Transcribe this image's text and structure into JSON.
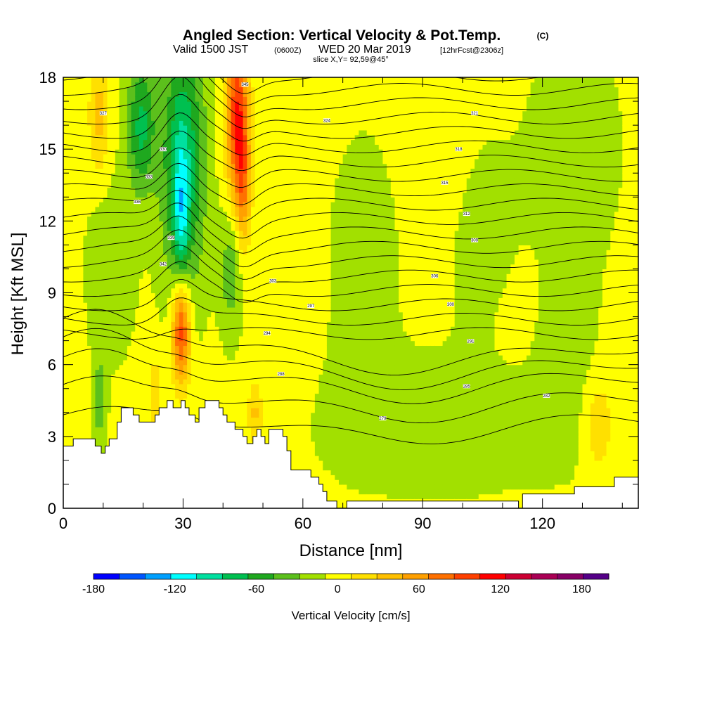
{
  "title": {
    "main": "Angled Section: Vertical Velocity & Pot.Temp.",
    "copyright": "(C)",
    "valid_prefix": "Valid 1500 JST",
    "valid_utc": "(0600Z)",
    "valid_date": "WED 20 Mar 2019",
    "forecast": "[12hrFcst@2306z]",
    "slice": "slice X,Y= 92,59@45°"
  },
  "chart_data": {
    "type": "heatmap",
    "xlabel": "Distance [nm]",
    "ylabel": "Height [Kft MSL]",
    "xlim": [
      0,
      144
    ],
    "ylim": [
      0,
      18
    ],
    "x_ticks": [
      0,
      30,
      60,
      90,
      120
    ],
    "y_ticks": [
      0,
      3,
      6,
      9,
      12,
      15,
      18
    ],
    "x_tick_labels": [
      "0",
      "30",
      "60",
      "90",
      "120"
    ],
    "y_tick_labels": [
      "0",
      "3",
      "6",
      "9",
      "12",
      "15",
      "18"
    ],
    "colorbar": {
      "title": "Vertical Velocity [cm/s]",
      "min": -180,
      "max": 200,
      "step": 20,
      "tick_values": [
        -180,
        -120,
        -60,
        0,
        60,
        120,
        180
      ],
      "tick_labels": [
        "-180",
        "-120",
        "-60",
        "0",
        "60",
        "120",
        "180"
      ],
      "colors": [
        "#0000ff",
        "#0055ff",
        "#00a0ff",
        "#00ffff",
        "#00e0a0",
        "#00c050",
        "#1fa81f",
        "#5cc01c",
        "#a2e000",
        "#ffff00",
        "#ffe000",
        "#ffc000",
        "#ffa000",
        "#ff7000",
        "#ff4000",
        "#ff0000",
        "#cc0033",
        "#aa0055",
        "#880066",
        "#550088"
      ]
    },
    "background_level": 5,
    "features": [
      {
        "name": "updraft-low",
        "x": 29.5,
        "y": 7.5,
        "sx": 1.6,
        "sy": 1.6,
        "amp": 118
      },
      {
        "name": "updraft-upper",
        "x": 43.5,
        "y": 16.5,
        "sx": 2.0,
        "sy": 2.5,
        "amp": 110
      },
      {
        "name": "updraft-upper-b",
        "x": 45,
        "y": 13.5,
        "sx": 1.4,
        "sy": 2.0,
        "amp": 60
      },
      {
        "name": "downdraft-column",
        "x": 30,
        "y": 14.5,
        "sx": 3.8,
        "sy": 3.8,
        "amp": -85
      },
      {
        "name": "downdraft-core",
        "x": 29.5,
        "y": 12.0,
        "sx": 1.3,
        "sy": 2.2,
        "amp": -55
      },
      {
        "name": "downdraft-left",
        "x": 19.5,
        "y": 16.0,
        "sx": 2.5,
        "sy": 2.0,
        "amp": -70
      },
      {
        "name": "downdraft-mid",
        "x": 42,
        "y": 10.0,
        "sx": 2.0,
        "sy": 1.8,
        "amp": -40
      },
      {
        "name": "updraft-left-top",
        "x": 9,
        "y": 16.5,
        "sx": 1.8,
        "sy": 1.8,
        "amp": 42
      },
      {
        "name": "updraft-right-low",
        "x": 134,
        "y": 3.5,
        "sx": 2.5,
        "sy": 1.4,
        "amp": 35
      },
      {
        "name": "updraft-48-low",
        "x": 48,
        "y": 4.0,
        "sx": 1.3,
        "sy": 1.0,
        "amp": 40
      },
      {
        "name": "updraft-23-low",
        "x": 23,
        "y": 4.5,
        "sx": 1.1,
        "sy": 1.3,
        "amp": 38
      },
      {
        "name": "downdraft-right-top",
        "x": 128,
        "y": 15,
        "sx": 7,
        "sy": 3,
        "amp": -22
      },
      {
        "name": "downdraft-mid-right",
        "x": 105,
        "y": 11,
        "sx": 9,
        "sy": 3,
        "amp": -18
      },
      {
        "name": "downdraft-lower-mid",
        "x": 95,
        "y": 3.5,
        "sx": 22,
        "sy": 2,
        "amp": -17
      },
      {
        "name": "downdraft-right-center",
        "x": 125,
        "y": 7,
        "sx": 6,
        "sy": 3,
        "amp": -16
      },
      {
        "name": "updraft-mid-right",
        "x": 95,
        "y": 14,
        "sx": 5,
        "sy": 4,
        "amp": 12
      },
      {
        "name": "updraft-right",
        "x": 115,
        "y": 9,
        "sx": 8,
        "sy": 3,
        "amp": 10
      },
      {
        "name": "downdraft-left-mid",
        "x": 12,
        "y": 10,
        "sx": 4,
        "sy": 2.5,
        "amp": -22
      },
      {
        "name": "updraft-58",
        "x": 58,
        "y": 12,
        "sx": 3,
        "sy": 5,
        "amp": 12
      },
      {
        "name": "downdraft-75",
        "x": 75,
        "y": 10,
        "sx": 6,
        "sy": 4,
        "amp": -14
      },
      {
        "name": "downdraft-9",
        "x": 9,
        "y": 4.5,
        "sx": 1.2,
        "sy": 1.5,
        "amp": -35
      }
    ],
    "terrain": [
      [
        0,
        2.6
      ],
      [
        2.5,
        2.6
      ],
      [
        2.5,
        2.9
      ],
      [
        8,
        2.9
      ],
      [
        8,
        2.6
      ],
      [
        9.5,
        2.6
      ],
      [
        9.5,
        2.3
      ],
      [
        10.5,
        2.3
      ],
      [
        10.5,
        2.6
      ],
      [
        11.5,
        2.6
      ],
      [
        11.5,
        2.9
      ],
      [
        13.5,
        2.9
      ],
      [
        13.5,
        3.6
      ],
      [
        14.5,
        3.6
      ],
      [
        14.5,
        4.2
      ],
      [
        17.5,
        4.2
      ],
      [
        17.5,
        3.9
      ],
      [
        19,
        3.9
      ],
      [
        19,
        3.6
      ],
      [
        23,
        3.6
      ],
      [
        23,
        3.9
      ],
      [
        24,
        3.9
      ],
      [
        24,
        4.2
      ],
      [
        26,
        4.2
      ],
      [
        26,
        4.5
      ],
      [
        27.5,
        4.5
      ],
      [
        27.5,
        4.2
      ],
      [
        29.5,
        4.2
      ],
      [
        29.5,
        4.5
      ],
      [
        30.5,
        4.5
      ],
      [
        30.5,
        4.2
      ],
      [
        31.5,
        4.2
      ],
      [
        31.5,
        3.9
      ],
      [
        33,
        3.9
      ],
      [
        33,
        3.6
      ],
      [
        34,
        3.6
      ],
      [
        34,
        4.2
      ],
      [
        35.5,
        4.2
      ],
      [
        35.5,
        4.5
      ],
      [
        39,
        4.5
      ],
      [
        39,
        4.2
      ],
      [
        40,
        4.2
      ],
      [
        40,
        3.9
      ],
      [
        41,
        3.9
      ],
      [
        41,
        3.6
      ],
      [
        43,
        3.6
      ],
      [
        43,
        3.3
      ],
      [
        45,
        3.3
      ],
      [
        45,
        3.0
      ],
      [
        46,
        3.0
      ],
      [
        46,
        2.7
      ],
      [
        47.5,
        2.7
      ],
      [
        47.5,
        3.0
      ],
      [
        48.5,
        3.0
      ],
      [
        48.5,
        3.3
      ],
      [
        49.5,
        3.3
      ],
      [
        49.5,
        3.0
      ],
      [
        50.5,
        3.0
      ],
      [
        50.5,
        2.7
      ],
      [
        51.5,
        2.7
      ],
      [
        51.5,
        3.3
      ],
      [
        55,
        3.3
      ],
      [
        55,
        3.0
      ],
      [
        56,
        3.0
      ],
      [
        56,
        2.4
      ],
      [
        57,
        2.4
      ],
      [
        57,
        1.6
      ],
      [
        62,
        1.6
      ],
      [
        62,
        1.3
      ],
      [
        64,
        1.3
      ],
      [
        64,
        1.0
      ],
      [
        65,
        1.0
      ],
      [
        65,
        0.7
      ],
      [
        66,
        0.7
      ],
      [
        66,
        0.3
      ],
      [
        68.5,
        0.3
      ],
      [
        68.5,
        0.0
      ],
      [
        71,
        0.0
      ],
      [
        71,
        0.3
      ],
      [
        114,
        0.3
      ],
      [
        114,
        0.0
      ],
      [
        115,
        0.0
      ],
      [
        115,
        0.6
      ],
      [
        128,
        0.6
      ],
      [
        128,
        0.9
      ],
      [
        138,
        0.9
      ],
      [
        138,
        1.3
      ],
      [
        144,
        1.3
      ],
      [
        144,
        0.0
      ]
    ],
    "theta_levels": [
      276,
      279,
      282,
      285,
      288,
      291,
      294,
      297,
      300,
      303,
      306,
      309,
      312,
      315,
      318,
      321,
      324,
      327,
      330,
      333,
      336,
      339,
      342,
      345
    ],
    "theta_labels": [
      {
        "x": 80,
        "y": 3.76,
        "text": "279"
      },
      {
        "x": 121,
        "y": 4.7,
        "text": "282"
      },
      {
        "x": 101,
        "y": 5.1,
        "text": "285"
      },
      {
        "x": 54.5,
        "y": 5.61,
        "text": "288"
      },
      {
        "x": 102,
        "y": 6.98,
        "text": "291"
      },
      {
        "x": 51,
        "y": 7.31,
        "text": "294"
      },
      {
        "x": 62,
        "y": 8.45,
        "text": "297"
      },
      {
        "x": 97,
        "y": 8.52,
        "text": "300"
      },
      {
        "x": 52.5,
        "y": 9.5,
        "text": "303"
      },
      {
        "x": 93,
        "y": 9.7,
        "text": "306"
      },
      {
        "x": 103,
        "y": 11.2,
        "text": "309"
      },
      {
        "x": 101,
        "y": 12.3,
        "text": "312"
      },
      {
        "x": 95.5,
        "y": 13.6,
        "text": "315"
      },
      {
        "x": 99,
        "y": 15.0,
        "text": "318"
      },
      {
        "x": 103,
        "y": 16.5,
        "text": "321"
      },
      {
        "x": 66,
        "y": 16.2,
        "text": "324"
      },
      {
        "x": 10,
        "y": 16.5,
        "text": "327"
      },
      {
        "x": 25,
        "y": 15.0,
        "text": "330"
      },
      {
        "x": 21.5,
        "y": 13.85,
        "text": "333"
      },
      {
        "x": 18.5,
        "y": 12.8,
        "text": "336"
      },
      {
        "x": 27,
        "y": 11.3,
        "text": "339"
      },
      {
        "x": 25,
        "y": 10.2,
        "text": "342"
      },
      {
        "x": 45.5,
        "y": 17.7,
        "text": "345"
      }
    ]
  }
}
